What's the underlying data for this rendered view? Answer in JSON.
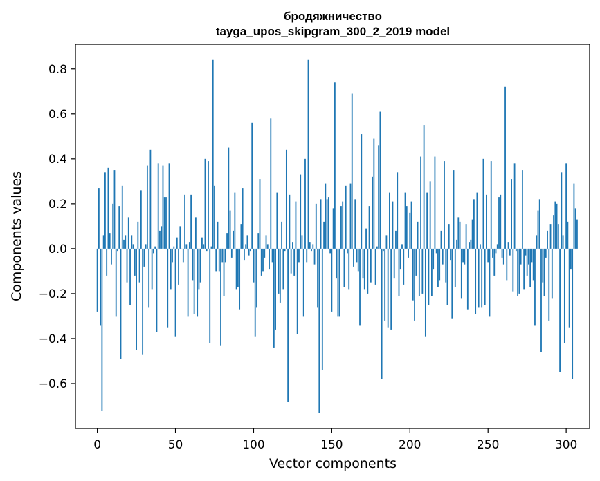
{
  "chart_data": {
    "type": "bar",
    "title": "бродяжничество",
    "subtitle": "tayga_upos_skipgram_300_2_2019 model",
    "xlabel": "Vector components",
    "ylabel": "Components values",
    "xlim": [
      -14,
      315
    ],
    "ylim": [
      -0.8,
      0.91
    ],
    "xticks": [
      0,
      50,
      100,
      150,
      200,
      250,
      300
    ],
    "xtick_labels": [
      "0",
      "50",
      "100",
      "150",
      "200",
      "250",
      "300"
    ],
    "yticks": [
      -0.6,
      -0.4,
      -0.2,
      0.0,
      0.2,
      0.4,
      0.6,
      0.8
    ],
    "ytick_labels": [
      "−0.6",
      "−0.4",
      "−0.2",
      "0.0",
      "0.2",
      "0.4",
      "0.6",
      "0.8"
    ],
    "grid": false,
    "bar_color": "#1f77b4",
    "x_start": 0,
    "values": [
      -0.28,
      0.27,
      -0.34,
      -0.72,
      0.06,
      0.34,
      -0.12,
      0.36,
      0.07,
      -0.07,
      0.2,
      0.35,
      -0.3,
      -0.01,
      0.19,
      -0.49,
      0.28,
      0.04,
      0.06,
      -0.15,
      0.14,
      -0.25,
      0.06,
      0.02,
      -0.12,
      -0.45,
      0.12,
      -0.15,
      0.26,
      -0.47,
      -0.08,
      0.02,
      0.37,
      -0.26,
      0.44,
      -0.18,
      -0.02,
      0.01,
      -0.37,
      0.38,
      0.08,
      0.1,
      0.37,
      0.23,
      0.23,
      -0.35,
      0.38,
      -0.18,
      -0.06,
      0.01,
      -0.39,
      0.05,
      -0.16,
      0.1,
      0.0,
      -0.06,
      0.24,
      0.02,
      -0.3,
      0.03,
      0.24,
      -0.14,
      -0.29,
      0.14,
      -0.3,
      -0.18,
      -0.15,
      0.05,
      0.02,
      0.4,
      -0.01,
      0.39,
      -0.42,
      0.01,
      0.84,
      0.28,
      -0.1,
      0.12,
      -0.1,
      -0.43,
      -0.06,
      -0.21,
      -0.06,
      0.07,
      0.45,
      0.17,
      -0.04,
      0.08,
      0.25,
      -0.18,
      -0.17,
      -0.27,
      0.11,
      0.27,
      -0.05,
      0.02,
      0.06,
      -0.03,
      -0.01,
      0.56,
      -0.15,
      -0.39,
      -0.26,
      0.07,
      0.31,
      -0.12,
      -0.1,
      -0.04,
      0.06,
      0.02,
      -0.09,
      0.58,
      -0.06,
      -0.44,
      -0.36,
      0.25,
      -0.2,
      -0.24,
      0.12,
      -0.18,
      -0.01,
      0.44,
      -0.68,
      0.24,
      -0.11,
      0.03,
      -0.12,
      0.21,
      -0.38,
      -0.06,
      0.33,
      0.06,
      -0.3,
      0.4,
      -0.06,
      0.84,
      0.03,
      -0.01,
      0.02,
      -0.07,
      0.2,
      -0.26,
      -0.73,
      0.22,
      -0.54,
      0.12,
      0.29,
      0.22,
      0.23,
      -0.02,
      -0.28,
      0.18,
      0.74,
      -0.13,
      -0.3,
      -0.3,
      0.19,
      0.21,
      -0.17,
      0.28,
      -0.02,
      -0.18,
      0.29,
      0.69,
      -0.08,
      0.22,
      -0.06,
      -0.1,
      -0.34,
      0.51,
      -0.13,
      -0.18,
      0.09,
      -0.2,
      0.19,
      -0.15,
      0.32,
      0.49,
      -0.16,
      0.01,
      0.46,
      0.61,
      -0.58,
      -0.01,
      -0.32,
      0.06,
      -0.35,
      0.25,
      -0.36,
      0.21,
      -0.13,
      0.08,
      0.34,
      -0.21,
      -0.09,
      0.02,
      -0.16,
      0.25,
      0.19,
      -0.04,
      0.16,
      0.21,
      -0.23,
      -0.32,
      -0.12,
      0.12,
      -0.21,
      0.41,
      -0.2,
      0.55,
      -0.39,
      0.25,
      -0.25,
      0.3,
      -0.21,
      -0.09,
      0.41,
      -0.02,
      -0.17,
      -0.14,
      0.08,
      -0.07,
      0.39,
      -0.15,
      -0.25,
      0.11,
      -0.05,
      -0.31,
      0.35,
      -0.17,
      0.04,
      0.14,
      0.12,
      -0.22,
      -0.06,
      -0.07,
      0.11,
      -0.27,
      0.03,
      0.04,
      0.13,
      0.22,
      -0.29,
      0.25,
      -0.26,
      0.02,
      -0.26,
      0.4,
      -0.25,
      0.24,
      -0.06,
      -0.3,
      0.39,
      -0.04,
      -0.12,
      -0.02,
      0.02,
      0.23,
      0.24,
      -0.04,
      -0.07,
      0.72,
      -0.14,
      0.03,
      -0.03,
      0.31,
      -0.19,
      0.38,
      -0.01,
      -0.21,
      -0.2,
      -0.07,
      0.35,
      -0.18,
      -0.03,
      -0.12,
      -0.07,
      -0.17,
      -0.06,
      -0.14,
      -0.34,
      0.06,
      0.17,
      0.22,
      -0.46,
      -0.15,
      -0.21,
      -0.04,
      0.08,
      -0.32,
      0.11,
      -0.22,
      0.15,
      0.21,
      0.2,
      0.11,
      -0.55,
      0.34,
      0.06,
      -0.42,
      0.38,
      0.12,
      -0.35,
      -0.09,
      -0.58,
      0.29,
      0.18,
      0.13
    ]
  }
}
